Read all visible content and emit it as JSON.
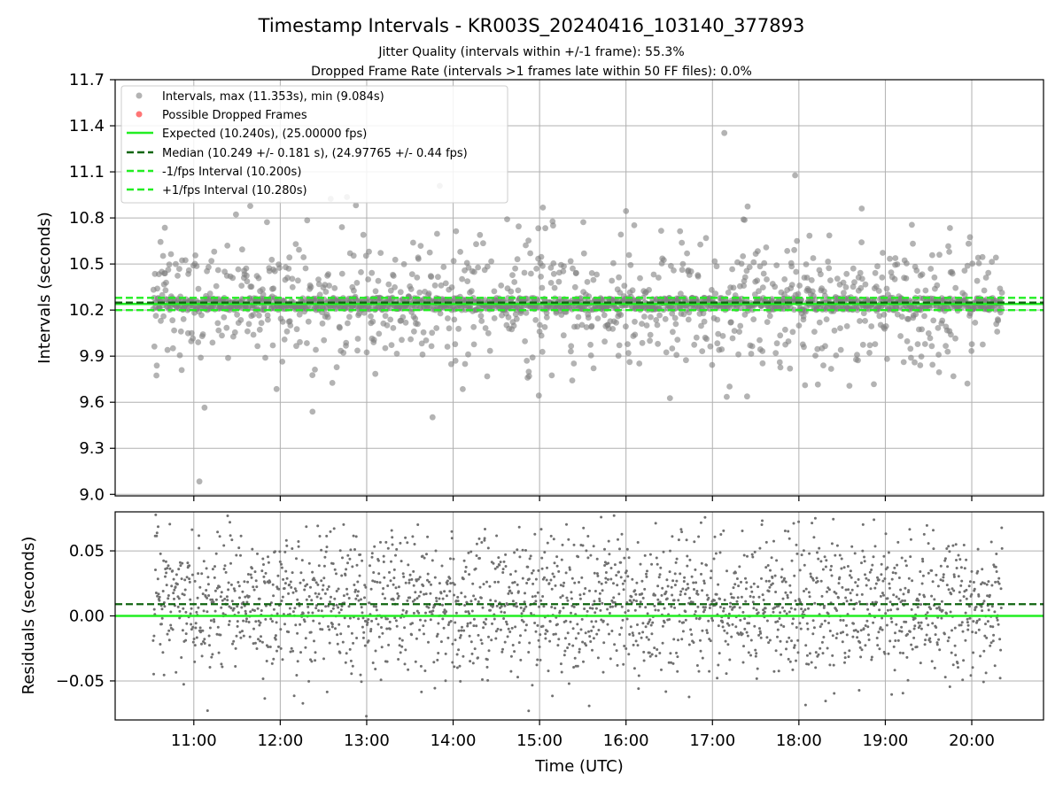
{
  "chart_data": [
    {
      "type": "scatter",
      "title": "Timestamp Intervals - KR003S_20240416_103140_377893",
      "subtitles": [
        "Jitter Quality (intervals within +/-1 frame): 55.3%",
        "Dropped Frame Rate (intervals >1 frames late within 50 FF files): 0.0%"
      ],
      "ylabel": "Intervals (seconds)",
      "xlabel": "",
      "ylim": [
        8.99,
        11.7
      ],
      "yticks": [
        "9.0",
        "9.3",
        "9.6",
        "9.9",
        "10.2",
        "10.5",
        "10.8",
        "11.1",
        "11.4",
        "11.7"
      ],
      "yticks_values": [
        9.0,
        9.3,
        9.6,
        9.9,
        10.2,
        10.5,
        10.8,
        11.1,
        11.4,
        11.7
      ],
      "xlim_hours": [
        10.09,
        20.83
      ],
      "x_range_hours": [
        10.53,
        20.35
      ],
      "grid": true,
      "legend_position": "top-left",
      "legend": [
        "Intervals, max (11.353s), min (9.084s)",
        "Possible Dropped Frames",
        "Expected (10.240s), (25.00000 fps)",
        "Median (10.249 +/- 0.181 s), (24.97765 +/- 0.44 fps)",
        "-1/fps Interval (10.200s)",
        "+1/fps Interval (10.280s)"
      ],
      "lines": {
        "expected": 10.24,
        "median": 10.249,
        "minus_interval": 10.2,
        "plus_interval": 10.28
      },
      "points": {
        "count": 2200,
        "max": 11.353,
        "min": 9.084,
        "median": 10.249,
        "std": 0.181,
        "dropped_frames": 0
      }
    },
    {
      "type": "scatter",
      "ylabel": "Residuals (seconds)",
      "xlabel": "Time (UTC)",
      "ylim": [
        -0.08,
        0.08
      ],
      "yticks": [
        "−0.05",
        "0.00",
        "0.05"
      ],
      "yticks_values": [
        -0.05,
        0.0,
        0.05
      ],
      "xticks": [
        "11:00",
        "12:00",
        "13:00",
        "14:00",
        "15:00",
        "16:00",
        "17:00",
        "18:00",
        "19:00",
        "20:00"
      ],
      "xticks_values": [
        11,
        12,
        13,
        14,
        15,
        16,
        17,
        18,
        19,
        20
      ],
      "xlim_hours": [
        10.09,
        20.83
      ],
      "grid": true,
      "lines": {
        "zero": 0.0,
        "median_residual": 0.009
      },
      "points": {
        "count": 2200,
        "range": [
          -0.08,
          0.08
        ]
      }
    }
  ],
  "colors": {
    "points": "#808080",
    "dropped": "#ff6666",
    "expected": "#22ee22",
    "median": "#116611",
    "interval": "#22ee22",
    "grid": "#b0b0b0"
  }
}
